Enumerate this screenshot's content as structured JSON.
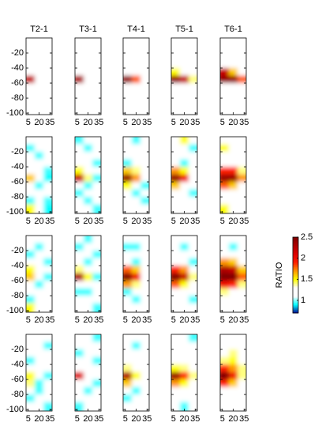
{
  "chart_data": {
    "type": "heatmap",
    "columns": [
      "T2-1",
      "T3-1",
      "T4-1",
      "T5-1",
      "T6-1"
    ],
    "x": [
      8,
      20,
      32
    ],
    "y": [
      -5,
      -15,
      -25,
      -35,
      -45,
      -55,
      -65,
      -75,
      -85,
      -95
    ],
    "xlim": [
      2,
      38
    ],
    "ylim": [
      -102,
      0
    ],
    "xticks": [
      5,
      20,
      35
    ],
    "yticks": [
      -20,
      -40,
      -60,
      -80,
      -100
    ],
    "colorbar": {
      "label": "RATIO",
      "clim": [
        0.7,
        2.5
      ],
      "ticks": [
        1,
        1.5,
        2,
        2.5
      ]
    },
    "colormap": [
      "#00008f",
      "#00ffff",
      "#ffffff",
      "#ffffff",
      "#ffff00",
      "#ff9900",
      "#ff2000",
      "#e00000",
      "#b00000",
      "#800000"
    ],
    "panels": [
      [
        [
          [
            1.2,
            1.2,
            1.2
          ],
          [
            1.2,
            1.2,
            1.2
          ],
          [
            1.2,
            1.2,
            1.2
          ],
          [
            1.2,
            1.2,
            1.2
          ],
          [
            1.2,
            1.2,
            1.2
          ],
          [
            2.2,
            1.2,
            1.2
          ],
          [
            1.2,
            1.2,
            1.2
          ],
          [
            1.2,
            1.2,
            1.2
          ],
          [
            1.2,
            1.2,
            1.2
          ],
          [
            1.2,
            1.2,
            1.2
          ]
        ],
        [
          [
            1.2,
            1.2,
            1.2
          ],
          [
            1.2,
            1.2,
            1.2
          ],
          [
            1.2,
            1.2,
            1.2
          ],
          [
            1.2,
            1.2,
            1.2
          ],
          [
            1.2,
            1.2,
            1.2
          ],
          [
            2.3,
            1.3,
            1.2
          ],
          [
            1.2,
            1.2,
            1.2
          ],
          [
            1.2,
            1.2,
            1.2
          ],
          [
            1.2,
            1.2,
            1.2
          ],
          [
            1.2,
            1.2,
            1.2
          ]
        ],
        [
          [
            1.2,
            1.2,
            1.2
          ],
          [
            1.2,
            1.2,
            1.2
          ],
          [
            1.2,
            1.2,
            1.2
          ],
          [
            1.2,
            1.2,
            1.2
          ],
          [
            1.2,
            1.2,
            1.2
          ],
          [
            2.4,
            1.8,
            1.2
          ],
          [
            1.2,
            1.2,
            1.2
          ],
          [
            1.2,
            1.2,
            1.2
          ],
          [
            1.2,
            1.2,
            1.2
          ],
          [
            1.2,
            1.2,
            1.2
          ]
        ],
        [
          [
            1.2,
            1.2,
            1.2
          ],
          [
            1.2,
            1.2,
            1.2
          ],
          [
            1.2,
            1.2,
            1.2
          ],
          [
            1.2,
            1.2,
            1.2
          ],
          [
            1.5,
            1.3,
            1.2
          ],
          [
            2.4,
            2.2,
            1.4
          ],
          [
            1.2,
            1.2,
            1.2
          ],
          [
            1.2,
            1.2,
            1.2
          ],
          [
            1.2,
            1.2,
            1.2
          ],
          [
            1.2,
            1.2,
            1.2
          ]
        ],
        [
          [
            1.2,
            1.2,
            1.2
          ],
          [
            1.2,
            1.2,
            1.2
          ],
          [
            1.2,
            1.2,
            1.2
          ],
          [
            1.2,
            1.2,
            1.2
          ],
          [
            2.2,
            1.6,
            1.2
          ],
          [
            2.4,
            2.4,
            1.8
          ],
          [
            1.2,
            1.2,
            1.2
          ],
          [
            1.2,
            1.2,
            1.2
          ],
          [
            1.2,
            1.2,
            1.2
          ],
          [
            1.2,
            1.2,
            1.2
          ]
        ]
      ],
      [
        [
          [
            1.2,
            1.2,
            1.2
          ],
          [
            0.95,
            1.2,
            1.2
          ],
          [
            1.2,
            0.95,
            1.2
          ],
          [
            1.2,
            1.2,
            1.2
          ],
          [
            1.2,
            1.2,
            0.95
          ],
          [
            1.6,
            1.2,
            0.9
          ],
          [
            1.2,
            0.95,
            1.2
          ],
          [
            1.2,
            1.2,
            1.2
          ],
          [
            0.95,
            1.2,
            0.95
          ],
          [
            1.5,
            1.2,
            0.9
          ]
        ],
        [
          [
            0.95,
            1.2,
            1.2
          ],
          [
            1.2,
            0.95,
            1.2
          ],
          [
            1.2,
            1.2,
            1.2
          ],
          [
            1.2,
            1.2,
            0.95
          ],
          [
            1.5,
            1.2,
            1.2
          ],
          [
            2.2,
            1.4,
            0.95
          ],
          [
            1.2,
            0.95,
            1.2
          ],
          [
            0.95,
            1.2,
            1.2
          ],
          [
            1.2,
            0.95,
            1.2
          ],
          [
            1.2,
            1.2,
            0.95
          ]
        ],
        [
          [
            1.2,
            0.95,
            1.2
          ],
          [
            1.2,
            1.2,
            1.2
          ],
          [
            1.2,
            1.2,
            1.2
          ],
          [
            0.95,
            1.2,
            1.2
          ],
          [
            1.6,
            1.4,
            1.2
          ],
          [
            2.4,
            1.7,
            1.2
          ],
          [
            1.5,
            1.2,
            0.95
          ],
          [
            1.2,
            0.95,
            1.2
          ],
          [
            1.2,
            1.2,
            0.95
          ],
          [
            1.2,
            1.2,
            1.2
          ]
        ],
        [
          [
            1.2,
            1.5,
            1.2
          ],
          [
            1.2,
            1.2,
            0.95
          ],
          [
            1.2,
            1.2,
            1.2
          ],
          [
            1.2,
            0.95,
            1.2
          ],
          [
            1.7,
            1.5,
            1.2
          ],
          [
            2.4,
            2.0,
            1.3
          ],
          [
            1.6,
            1.3,
            1.2
          ],
          [
            1.2,
            1.2,
            0.95
          ],
          [
            1.2,
            1.2,
            1.2
          ],
          [
            1.2,
            1.2,
            1.2
          ]
        ],
        [
          [
            1.2,
            1.2,
            1.2
          ],
          [
            1.5,
            1.3,
            1.2
          ],
          [
            1.2,
            1.2,
            1.2
          ],
          [
            1.2,
            1.2,
            1.2
          ],
          [
            1.9,
            1.9,
            1.4
          ],
          [
            2.4,
            2.4,
            1.7
          ],
          [
            1.8,
            1.6,
            1.3
          ],
          [
            1.2,
            1.2,
            1.2
          ],
          [
            1.2,
            1.2,
            1.2
          ],
          [
            1.5,
            1.2,
            1.2
          ]
        ]
      ],
      [
        [
          [
            1.2,
            1.2,
            1.2
          ],
          [
            1.2,
            0.95,
            1.2
          ],
          [
            0.95,
            1.2,
            1.2
          ],
          [
            1.2,
            1.2,
            0.95
          ],
          [
            1.5,
            1.2,
            1.2
          ],
          [
            1.6,
            1.2,
            0.95
          ],
          [
            1.2,
            0.95,
            1.2
          ],
          [
            1.2,
            1.2,
            1.2
          ],
          [
            0.95,
            1.2,
            1.2
          ],
          [
            1.5,
            1.2,
            1.2
          ]
        ],
        [
          [
            1.2,
            0.95,
            1.2
          ],
          [
            0.95,
            1.2,
            1.2
          ],
          [
            1.2,
            1.2,
            0.95
          ],
          [
            1.2,
            0.95,
            1.2
          ],
          [
            1.4,
            1.2,
            1.2
          ],
          [
            2.3,
            1.5,
            0.95
          ],
          [
            1.3,
            1.2,
            1.2
          ],
          [
            0.95,
            0.95,
            1.2
          ],
          [
            1.2,
            1.2,
            1.2
          ],
          [
            1.2,
            1.2,
            0.95
          ]
        ],
        [
          [
            1.2,
            1.2,
            1.2
          ],
          [
            0.95,
            0.95,
            1.2
          ],
          [
            1.2,
            1.2,
            1.2
          ],
          [
            1.2,
            0.95,
            1.2
          ],
          [
            1.8,
            1.6,
            1.2
          ],
          [
            2.5,
            2.0,
            1.3
          ],
          [
            1.7,
            1.4,
            1.2
          ],
          [
            0.95,
            1.2,
            1.2
          ],
          [
            1.2,
            0.95,
            1.2
          ],
          [
            1.2,
            1.2,
            1.2
          ]
        ],
        [
          [
            1.2,
            1.2,
            1.2
          ],
          [
            1.2,
            0.95,
            1.2
          ],
          [
            1.2,
            1.2,
            1.2
          ],
          [
            1.2,
            1.2,
            0.95
          ],
          [
            1.9,
            1.7,
            1.3
          ],
          [
            2.5,
            2.2,
            1.4
          ],
          [
            1.8,
            1.5,
            1.2
          ],
          [
            1.2,
            1.2,
            1.2
          ],
          [
            1.2,
            1.2,
            0.95
          ],
          [
            1.2,
            1.2,
            1.2
          ]
        ],
        [
          [
            1.2,
            1.2,
            1.2
          ],
          [
            1.2,
            0.95,
            1.2
          ],
          [
            1.3,
            1.2,
            1.2
          ],
          [
            1.7,
            1.6,
            1.3
          ],
          [
            2.3,
            2.2,
            1.6
          ],
          [
            2.5,
            2.5,
            1.8
          ],
          [
            2.0,
            1.9,
            1.4
          ],
          [
            1.4,
            1.3,
            1.2
          ],
          [
            1.2,
            1.2,
            1.2
          ],
          [
            1.2,
            1.2,
            1.2
          ]
        ]
      ],
      [
        [
          [
            1.2,
            1.2,
            1.2
          ],
          [
            1.2,
            1.2,
            0.95
          ],
          [
            1.2,
            1.2,
            1.2
          ],
          [
            0.95,
            1.2,
            1.2
          ],
          [
            1.2,
            1.2,
            1.2
          ],
          [
            1.5,
            1.2,
            0.95
          ],
          [
            1.4,
            0.95,
            1.2
          ],
          [
            1.2,
            0.95,
            1.2
          ],
          [
            0.95,
            1.2,
            1.2
          ],
          [
            1.2,
            1.2,
            0.95
          ]
        ],
        [
          [
            1.2,
            1.2,
            0.95
          ],
          [
            1.2,
            1.2,
            1.2
          ],
          [
            0.95,
            1.2,
            1.2
          ],
          [
            1.2,
            1.2,
            0.95
          ],
          [
            1.2,
            1.2,
            1.2
          ],
          [
            2.1,
            1.3,
            1.2
          ],
          [
            1.3,
            1.2,
            0.95
          ],
          [
            1.2,
            0.95,
            1.2
          ],
          [
            1.2,
            1.2,
            1.2
          ],
          [
            0.95,
            1.2,
            1.2
          ]
        ],
        [
          [
            1.2,
            1.2,
            1.2
          ],
          [
            1.2,
            0.95,
            1.2
          ],
          [
            1.2,
            1.2,
            1.2
          ],
          [
            1.2,
            1.2,
            1.2
          ],
          [
            1.4,
            1.2,
            1.2
          ],
          [
            2.3,
            1.5,
            1.2
          ],
          [
            1.6,
            1.3,
            1.2
          ],
          [
            1.2,
            0.95,
            1.2
          ],
          [
            0.95,
            1.2,
            1.2
          ],
          [
            1.2,
            1.2,
            1.2
          ]
        ],
        [
          [
            1.2,
            1.2,
            0.95
          ],
          [
            1.2,
            1.2,
            1.2
          ],
          [
            1.2,
            1.2,
            1.2
          ],
          [
            1.2,
            1.2,
            1.2
          ],
          [
            1.5,
            1.4,
            1.2
          ],
          [
            2.4,
            1.9,
            1.4
          ],
          [
            1.7,
            1.5,
            1.3
          ],
          [
            1.2,
            1.2,
            1.2
          ],
          [
            1.2,
            1.2,
            1.2
          ],
          [
            1.2,
            0.95,
            1.2
          ]
        ],
        [
          [
            1.2,
            1.2,
            1.2
          ],
          [
            1.2,
            1.2,
            1.2
          ],
          [
            1.2,
            1.4,
            1.2
          ],
          [
            1.4,
            1.5,
            1.3
          ],
          [
            1.9,
            1.7,
            1.4
          ],
          [
            2.5,
            2.0,
            1.4
          ],
          [
            1.9,
            1.6,
            1.3
          ],
          [
            1.3,
            1.2,
            1.2
          ],
          [
            1.2,
            1.2,
            1.2
          ],
          [
            1.2,
            1.2,
            1.2
          ]
        ]
      ]
    ]
  }
}
